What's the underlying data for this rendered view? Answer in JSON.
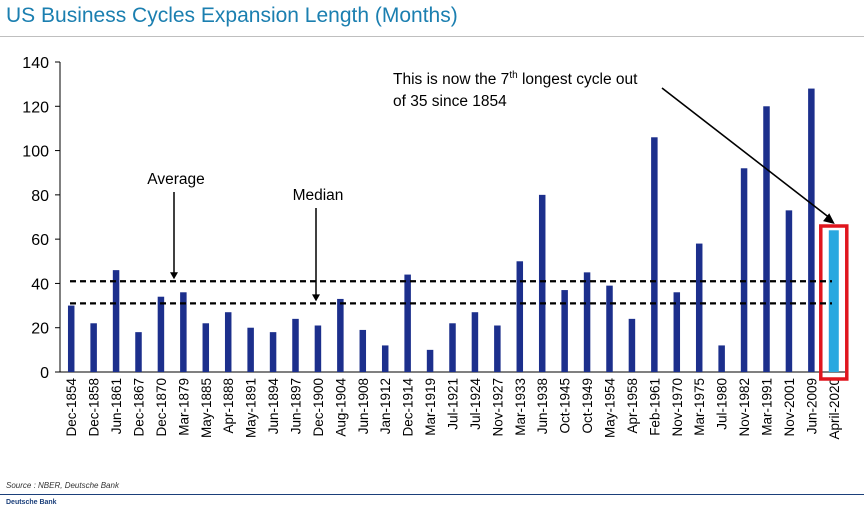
{
  "header": {
    "title": "US Business Cycles Expansion Length (Months)"
  },
  "footer": {
    "source": "Source : NBER, Deutsche Bank",
    "brand": "Deutsche Bank"
  },
  "chart_data": {
    "type": "bar",
    "ylim": [
      0,
      140
    ],
    "yticks": [
      0,
      20,
      40,
      60,
      80,
      100,
      120,
      140
    ],
    "grid": false,
    "categories": [
      "Dec-1854",
      "Dec-1858",
      "Jun-1861",
      "Dec-1867",
      "Dec-1870",
      "Mar-1879",
      "May-1885",
      "Apr-1888",
      "May-1891",
      "Jun-1894",
      "Jun-1897",
      "Dec-1900",
      "Aug-1904",
      "Jun-1908",
      "Jan-1912",
      "Dec-1914",
      "Mar-1919",
      "Jul-1921",
      "Jul-1924",
      "Nov-1927",
      "Mar-1933",
      "Jun-1938",
      "Oct-1945",
      "Oct-1949",
      "May-1954",
      "Apr-1958",
      "Feb-1961",
      "Nov-1970",
      "Mar-1975",
      "Jul-1980",
      "Nov-1982",
      "Mar-1991",
      "Nov-2001",
      "Jun-2009",
      "April-2020"
    ],
    "values": [
      30,
      22,
      46,
      18,
      34,
      36,
      22,
      27,
      20,
      18,
      24,
      21,
      33,
      19,
      12,
      44,
      10,
      22,
      27,
      21,
      50,
      80,
      37,
      45,
      39,
      24,
      106,
      36,
      58,
      12,
      92,
      120,
      73,
      128,
      64
    ],
    "bar_color": "#1c2f8c",
    "highlight_index": 34,
    "highlight_color": "#29a8e0",
    "highlight_box_color": "#e0161e",
    "reference_lines": [
      {
        "label": "Average",
        "value": 41
      },
      {
        "label": "Median",
        "value": 31
      }
    ],
    "annotation": {
      "line1_pre": "This is now the 7",
      "line1_sup": "th",
      "line1_post": " longest cycle out",
      "line2": "of 35 since 1854"
    }
  }
}
